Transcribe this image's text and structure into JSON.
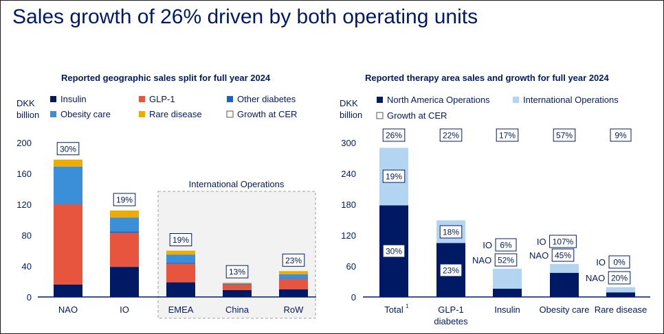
{
  "page_title": "Sales growth of 26% driven by both operating units",
  "colors": {
    "navy": "#001965",
    "red": "#E8553E",
    "blue": "#3B8FD9",
    "lightblue": "#B3D5F2",
    "yellow": "#F0AB00",
    "other_diabetes": "#1F5FBF"
  },
  "chart_data": [
    {
      "type": "bar",
      "stacked": true,
      "title": "Reported geographic sales split for full year 2024",
      "ylabel_line1": "DKK",
      "ylabel_line2": "billion",
      "ylim": [
        0,
        200
      ],
      "yticks": [
        "200",
        "160",
        "120",
        "80",
        "40",
        "0"
      ],
      "categories": [
        "NAO",
        "IO",
        "EMEA",
        "China",
        "RoW"
      ],
      "series": [
        {
          "name": "Insulin",
          "color_key": "navy",
          "values": [
            16,
            39,
            19,
            9,
            10
          ]
        },
        {
          "name": "GLP-1",
          "color_key": "red",
          "values": [
            104,
            44,
            24,
            7,
            13
          ]
        },
        {
          "name": "Other diabetes",
          "color_key": "other_diabetes",
          "values": [
            0,
            2,
            1,
            0.5,
            0.5
          ]
        },
        {
          "name": "Obesity care",
          "color_key": "blue",
          "values": [
            49,
            18,
            11,
            1,
            6
          ]
        },
        {
          "name": "Rare disease",
          "color_key": "yellow",
          "values": [
            9,
            9,
            5,
            1,
            4
          ]
        }
      ],
      "growth_legend": "Growth at CER",
      "growth_labels": [
        "30%",
        "19%",
        "19%",
        "13%",
        "23%"
      ],
      "group_label": "International Operations"
    },
    {
      "type": "bar",
      "stacked": true,
      "title": "Reported therapy area sales and growth for full year 2024",
      "ylabel_line1": "DKK",
      "ylabel_line2": "billion",
      "ylim": [
        0,
        300
      ],
      "yticks": [
        "300",
        "240",
        "180",
        "120",
        "60",
        "0"
      ],
      "categories": [
        "Total",
        "GLP-1 diabetes",
        "Insulin",
        "Obesity care",
        "Rare disease"
      ],
      "category_labels": [
        {
          "line1": "Total",
          "sup": "1",
          "line2": ""
        },
        {
          "line1": "GLP-1",
          "sup": "",
          "line2": "diabetes"
        },
        {
          "line1": "Insulin",
          "sup": "",
          "line2": ""
        },
        {
          "line1": "Obesity care",
          "sup": "",
          "line2": ""
        },
        {
          "line1": "Rare disease",
          "sup": "",
          "line2": ""
        }
      ],
      "series": [
        {
          "name": "North America Operations",
          "color_key": "navy",
          "values": [
            178,
            105,
            16,
            47,
            9
          ]
        },
        {
          "name": "International Operations",
          "color_key": "lightblue",
          "values": [
            112,
            44,
            39,
            17,
            10
          ]
        }
      ],
      "growth_legend": "Growth at CER",
      "growth_labels": [
        "26%",
        "22%",
        "17%",
        "57%",
        "9%"
      ],
      "inside_labels": {
        "total_io": "19%",
        "total_nao": "30%",
        "glp1_io": "18%",
        "glp1_nao": "23%"
      },
      "side_labels": [
        {
          "io_prefix": "IO",
          "io_value": "6%",
          "nao_prefix": "NAO",
          "nao_value": "52%"
        },
        {
          "io_prefix": "IO",
          "io_value": "107%",
          "nao_prefix": "NAO",
          "nao_value": "45%"
        },
        {
          "io_prefix": "IO",
          "io_value": "0%",
          "nao_prefix": "NAO",
          "nao_value": "20%"
        }
      ]
    }
  ]
}
